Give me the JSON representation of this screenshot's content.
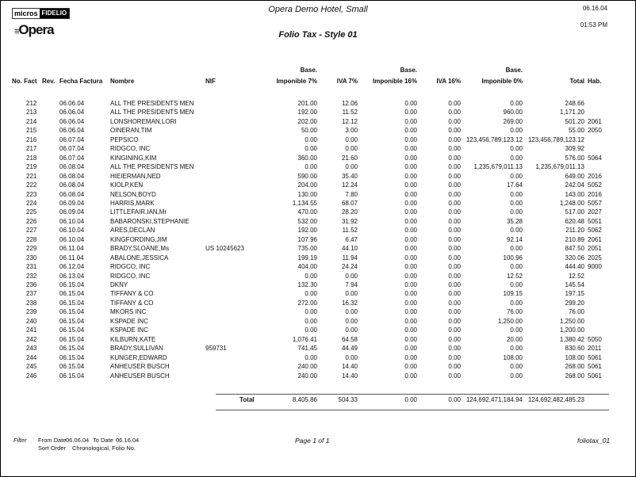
{
  "header": {
    "logo_micros": "micros",
    "logo_fidelio": "FIDELIO",
    "logo_opera": "Opera",
    "hotel_name": "Opera Demo Hotel, Small",
    "report_title": "Folio Tax - Style 01",
    "date": "06.16.04",
    "time": "01:53 PM"
  },
  "columns": {
    "no_fact": "No. Fact",
    "rev": "Rev.",
    "fecha": "Fecha Factura",
    "nombre": "Nombre",
    "nif": "NIF",
    "base7_top": "Base.",
    "base7": "Imponible 7%",
    "iva7": "IVA 7%",
    "base16_top": "Base.",
    "base16": "Imponible 16%",
    "iva16": "IVA 16%",
    "base0_top": "Base.",
    "base0": "Imponible 0%",
    "total": "Total",
    "hab": "Hab."
  },
  "rows": [
    [
      "212",
      "06.06.04",
      "ALL THE PRESIDENTS MEN",
      "",
      "201.00",
      "12.06",
      "0.00",
      "0.00",
      "0.00",
      "248.66",
      ""
    ],
    [
      "213",
      "06.06.04",
      "ALL THE PRESIDENTS MEN",
      "",
      "192.00",
      "11.52",
      "0.00",
      "0.00",
      "960.00",
      "1,171.20",
      ""
    ],
    [
      "214",
      "06.06.04",
      "LONSHOREMAN,LORI",
      "",
      "202.00",
      "12.12",
      "0.00",
      "0.00",
      "269.00",
      "501.20",
      "2061"
    ],
    [
      "215",
      "06.06.04",
      "OINERAN,TIM",
      "",
      "50.00",
      "3.00",
      "0.00",
      "0.00",
      "0.00",
      "55.00",
      "2050"
    ],
    [
      "216",
      "06.07.04",
      "PEPSICO",
      "",
      "0.00",
      "0.00",
      "0.00",
      "0.00",
      "123,456,789,123.12",
      "123,456,789,123.12",
      ""
    ],
    [
      "217",
      "06.07.04",
      "RIDGCO, INC",
      "",
      "0.00",
      "0.00",
      "0.00",
      "0.00",
      "0.00",
      "309.92",
      ""
    ],
    [
      "218",
      "06.07.04",
      "KINGINING,KIM",
      "",
      "360.00",
      "21.60",
      "0.00",
      "0.00",
      "0.00",
      "576.00",
      "5064"
    ],
    [
      "219",
      "06.08.04",
      "ALL THE PRESIDENTS MEN",
      "",
      "0.00",
      "0.00",
      "0.00",
      "0.00",
      "1,235,679,011.13",
      "1,235,679,011.13",
      ""
    ],
    [
      "221",
      "06.08.04",
      "HIEIERMAN,NED",
      "",
      "590.00",
      "35.40",
      "0.00",
      "0.00",
      "0.00",
      "649.00",
      "2016"
    ],
    [
      "222",
      "06.08.04",
      "KIOLP,KEN",
      "",
      "204.00",
      "12.24",
      "0.00",
      "0.00",
      "17.64",
      "242.04",
      "5052"
    ],
    [
      "223",
      "06.08.04",
      "NELSON,BOYD",
      "",
      "130.00",
      "7.80",
      "0.00",
      "0.00",
      "0.00",
      "143.00",
      "2016"
    ],
    [
      "224",
      "06.09.04",
      "HARRIS,MARK",
      "",
      "1,134.55",
      "68.07",
      "0.00",
      "0.00",
      "0.00",
      "1,248.00",
      "5057"
    ],
    [
      "225",
      "06.09.04",
      "LITTLEFAIR,IAN,Mr",
      "",
      "470.00",
      "28.20",
      "0.00",
      "0.00",
      "0.00",
      "517.00",
      "2027"
    ],
    [
      "226",
      "06.10.04",
      "BABARONSKI,STEPHANIE",
      "",
      "532.00",
      "31.92",
      "0.00",
      "0.00",
      "35.28",
      "620.48",
      "5051"
    ],
    [
      "227",
      "06.10.04",
      "ARES,DECLAN",
      "",
      "192.00",
      "11.52",
      "0.00",
      "0.00",
      "0.00",
      "211.20",
      "5062"
    ],
    [
      "228",
      "06.10.04",
      "KINGFORDING,JIM",
      "",
      "107.96",
      "6.47",
      "0.00",
      "0.00",
      "92.14",
      "210.89",
      "2061"
    ],
    [
      "229",
      "06.11.04",
      "BRADY,SLOANE,Ms",
      "US 10245623",
      "735.00",
      "44.10",
      "0.00",
      "0.00",
      "0.00",
      "847.50",
      "2051"
    ],
    [
      "230",
      "06.11.04",
      "ABALONE,JESSICA",
      "",
      "199.19",
      "11.94",
      "0.00",
      "0.00",
      "100.96",
      "320.06",
      "2025"
    ],
    [
      "231",
      "06.12.04",
      "RIDGCO, INC",
      "",
      "404.00",
      "24.24",
      "0.00",
      "0.00",
      "0.00",
      "444.40",
      "9000"
    ],
    [
      "232",
      "06.13.04",
      "RIDGCO, INC",
      "",
      "0.00",
      "0.00",
      "0.00",
      "0.00",
      "12.52",
      "12.52",
      ""
    ],
    [
      "236",
      "06.15.04",
      "DKNY",
      "",
      "132.30",
      "7.94",
      "0.00",
      "0.00",
      "0.00",
      "145.54",
      ""
    ],
    [
      "237",
      "06.15.04",
      "TIFFANY & CO",
      "",
      "0.00",
      "0.00",
      "0.00",
      "0.00",
      "109.15",
      "197.15",
      ""
    ],
    [
      "238",
      "06.15.04",
      "TIFFANY & CO",
      "",
      "272.00",
      "16.32",
      "0.00",
      "0.00",
      "0.00",
      "299.20",
      ""
    ],
    [
      "239",
      "06.15.04",
      "MKORS INC",
      "",
      "0.00",
      "0.00",
      "0.00",
      "0.00",
      "76.00",
      "76.00",
      ""
    ],
    [
      "240",
      "06.15.04",
      "KSPADE INC",
      "",
      "0.00",
      "0.00",
      "0.00",
      "0.00",
      "1,250.00",
      "1,250.00",
      ""
    ],
    [
      "241",
      "06.15.04",
      "KSPADE INC",
      "",
      "0.00",
      "0.00",
      "0.00",
      "0.00",
      "0.00",
      "1,200.00",
      ""
    ],
    [
      "242",
      "06.15.04",
      "KILBURN,KATE",
      "",
      "1,076.41",
      "64.58",
      "0.00",
      "0.00",
      "20.00",
      "1,380.42",
      "5050"
    ],
    [
      "243",
      "06.15.04",
      "BRADY,SULLIVAN",
      "959731",
      "741.45",
      "44.49",
      "0.00",
      "0.00",
      "0.00",
      "830.60",
      "2011"
    ],
    [
      "244",
      "06.15.04",
      "KUNGER,EDWARD",
      "",
      "0.00",
      "0.00",
      "0.00",
      "0.00",
      "108.00",
      "108.00",
      "5061"
    ],
    [
      "245",
      "06.15.04",
      "ANHEUSER BUSCH",
      "",
      "240.00",
      "14.40",
      "0.00",
      "0.00",
      "0.00",
      "268.00",
      "5061"
    ],
    [
      "246",
      "06.15.04",
      "ANHEUSER BUSCH",
      "",
      "240.00",
      "14.40",
      "0.00",
      "0.00",
      "0.00",
      "268.00",
      "5061"
    ]
  ],
  "totals": {
    "label": "Total",
    "base7": "8,405.86",
    "iva7": "504.33",
    "base16": "0.00",
    "iva16": "0.00",
    "base0": "124,692,471,184.94",
    "total": "124,692,482,485.23"
  },
  "footer": {
    "filter_label": "Filter",
    "from_date_label": "From Date",
    "from_date": "06.06.04",
    "to_date_label": "To Date",
    "to_date": "06.16.04",
    "sort_order_label": "Sort Order",
    "sort_order": "Chronological, Folio No.",
    "page": "Page 1 of 1",
    "report_id": "foliotax_01"
  }
}
